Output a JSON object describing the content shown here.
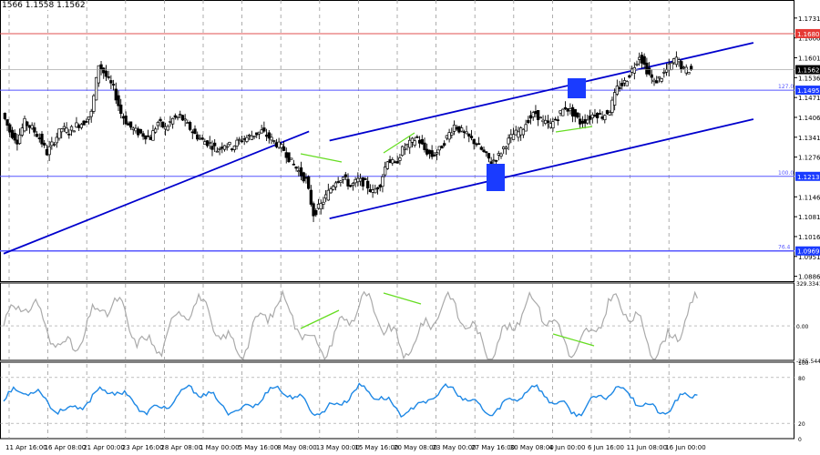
{
  "header": {
    "quote": "1566 1.1558 1.1562"
  },
  "colors": {
    "candle": "#000000",
    "channel": "#0000cd",
    "fib": "#5555ff",
    "resistance": "#e05050",
    "divergence": "#66dd22",
    "cci": "#aaaaaa",
    "rsi": "#1e88e5",
    "grid": "#999999",
    "badge_bg": "#1a3bff",
    "badge_text": "#ffffff"
  },
  "main_price_axis": [
    "1.1731",
    "1.1666",
    "1.1601",
    "1.1536",
    "1.1471",
    "1.1406",
    "1.1341",
    "1.1276",
    "1.1146",
    "1.1081",
    "1.1016",
    "1.0951",
    "1.0886"
  ],
  "level_badges": [
    {
      "value": "1.1680",
      "color": "#e53935"
    },
    {
      "value": "1.1562",
      "color": "#000000"
    },
    {
      "value": "1.1495",
      "color": "#1a3bff"
    },
    {
      "value": "1.1213",
      "color": "#1a3bff"
    },
    {
      "value": "1.0969",
      "color": "#1a3bff"
    }
  ],
  "fib_labels": [
    "127.0",
    "100.0",
    "76.4"
  ],
  "cci_axis": [
    "329.3341",
    "0.00",
    "-265.544"
  ],
  "rsi_axis": [
    "100",
    "80",
    "20",
    "0"
  ],
  "time_axis": [
    "11 Apr 16:00",
    "16 Apr 08:00",
    "21 Apr 00:00",
    "23 Apr 16:00",
    "28 Apr 08:00",
    "1 May 00:00",
    "5 May 16:00",
    "8 May 08:00",
    "13 May 00:00",
    "15 May 16:00",
    "20 May 08:00",
    "23 May 00:00",
    "27 May 16:00",
    "30 May 08:00",
    "4 Jun 00:00",
    "6 Jun 16:00",
    "11 Jun 08:00",
    "16 Jun 00:00"
  ],
  "chart_data": {
    "type": "candlestick",
    "symbol_quote": "1566 1.1558 1.1562",
    "x_labels": [
      "11 Apr 16:00",
      "16 Apr 08:00",
      "21 Apr 00:00",
      "23 Apr 16:00",
      "28 Apr 08:00",
      "1 May 00:00",
      "5 May 16:00",
      "8 May 08:00",
      "13 May 00:00",
      "15 May 16:00",
      "20 May 08:00",
      "23 May 00:00",
      "27 May 16:00",
      "30 May 08:00",
      "4 Jun 00:00",
      "6 Jun 16:00",
      "11 Jun 08:00",
      "16 Jun 00:00"
    ],
    "ylim": [
      1.087,
      1.179
    ],
    "close_path": [
      [
        0,
        1.142
      ],
      [
        1,
        1.136
      ],
      [
        2,
        1.133
      ],
      [
        3,
        1.139
      ],
      [
        4,
        1.137
      ],
      [
        5,
        1.134
      ],
      [
        6,
        1.129
      ],
      [
        7,
        1.133
      ],
      [
        8,
        1.137
      ],
      [
        9,
        1.136
      ],
      [
        10,
        1.138
      ],
      [
        11,
        1.139
      ],
      [
        12,
        1.142
      ],
      [
        13,
        1.158
      ],
      [
        14,
        1.154
      ],
      [
        15,
        1.15
      ],
      [
        16,
        1.142
      ],
      [
        17,
        1.138
      ],
      [
        18,
        1.136
      ],
      [
        19,
        1.135
      ],
      [
        20,
        1.134
      ],
      [
        21,
        1.139
      ],
      [
        22,
        1.137
      ],
      [
        23,
        1.14
      ],
      [
        24,
        1.141
      ],
      [
        25,
        1.138
      ],
      [
        26,
        1.135
      ],
      [
        27,
        1.133
      ],
      [
        28,
        1.132
      ],
      [
        29,
        1.13
      ],
      [
        30,
        1.132
      ],
      [
        31,
        1.131
      ],
      [
        32,
        1.133
      ],
      [
        33,
        1.134
      ],
      [
        34,
        1.135
      ],
      [
        35,
        1.136
      ],
      [
        36,
        1.134
      ],
      [
        37,
        1.132
      ],
      [
        38,
        1.13
      ],
      [
        39,
        1.126
      ],
      [
        40,
        1.123
      ],
      [
        41,
        1.12
      ],
      [
        42,
        1.109
      ],
      [
        43,
        1.112
      ],
      [
        44,
        1.116
      ],
      [
        45,
        1.12
      ],
      [
        46,
        1.121
      ],
      [
        47,
        1.118
      ],
      [
        48,
        1.12
      ],
      [
        49,
        1.119
      ],
      [
        50,
        1.116
      ],
      [
        51,
        1.119
      ],
      [
        52,
        1.127
      ],
      [
        53,
        1.125
      ],
      [
        54,
        1.13
      ],
      [
        55,
        1.132
      ],
      [
        56,
        1.134
      ],
      [
        57,
        1.13
      ],
      [
        58,
        1.128
      ],
      [
        59,
        1.13
      ],
      [
        60,
        1.134
      ],
      [
        61,
        1.138
      ],
      [
        62,
        1.136
      ],
      [
        63,
        1.134
      ],
      [
        64,
        1.132
      ],
      [
        65,
        1.129
      ],
      [
        66,
        1.126
      ],
      [
        67,
        1.128
      ],
      [
        68,
        1.132
      ],
      [
        69,
        1.135
      ],
      [
        70,
        1.136
      ],
      [
        71,
        1.14
      ],
      [
        72,
        1.142
      ],
      [
        73,
        1.139
      ],
      [
        74,
        1.138
      ],
      [
        75,
        1.141
      ],
      [
        76,
        1.144
      ],
      [
        77,
        1.142
      ],
      [
        78,
        1.139
      ],
      [
        79,
        1.14
      ],
      [
        80,
        1.142
      ],
      [
        81,
        1.141
      ],
      [
        82,
        1.143
      ],
      [
        83,
        1.15
      ],
      [
        84,
        1.152
      ],
      [
        85,
        1.156
      ],
      [
        86,
        1.161
      ],
      [
        87,
        1.156
      ],
      [
        88,
        1.152
      ],
      [
        89,
        1.154
      ],
      [
        90,
        1.157
      ],
      [
        91,
        1.16
      ],
      [
        92,
        1.156
      ],
      [
        93,
        1.1562
      ]
    ],
    "horizontal_levels": [
      {
        "price": 1.168,
        "name": "resistance"
      },
      {
        "price": 1.1495,
        "label": "127.0"
      },
      {
        "price": 1.1213,
        "label": "100.0"
      },
      {
        "price": 1.0969,
        "label": "76.4"
      }
    ],
    "trend_lines": [
      {
        "from": [
          0,
          1.096
        ],
        "to": [
          40,
          1.136
        ],
        "name": "old-uptrend"
      },
      {
        "from": [
          44,
          1.133
        ],
        "to": [
          100,
          1.165
        ],
        "name": "channel-upper"
      },
      {
        "from": [
          44,
          1.1075
        ],
        "to": [
          100,
          1.14
        ],
        "name": "channel-lower"
      }
    ],
    "cci_range": [
      -265.544,
      329.3341
    ],
    "rsi_range": [
      0,
      100
    ]
  }
}
